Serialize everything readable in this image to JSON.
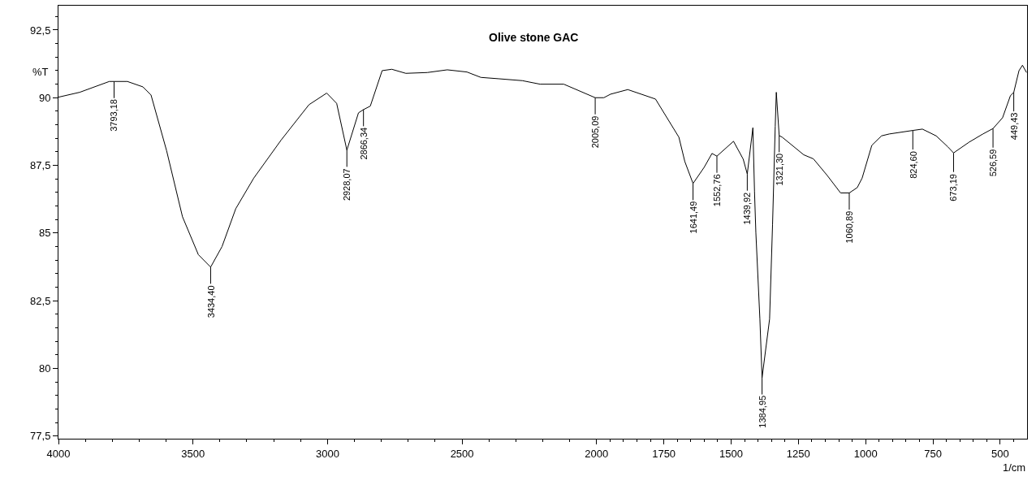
{
  "chart_data": {
    "type": "line",
    "title": "Olive stone GAC",
    "xlabel": "1/cm",
    "ylabel": "%T",
    "xlim": [
      4000,
      400
    ],
    "ylim": [
      77.4,
      93.4
    ],
    "xticks": [
      4000,
      {
        "value": 3900,
        "label": null
      },
      {
        "value": 3800,
        "label": null
      },
      {
        "value": 3700,
        "label": null
      },
      {
        "value": 3600,
        "label": null
      },
      3500,
      {
        "value": 3400,
        "label": null
      },
      {
        "value": 3300,
        "label": null
      },
      {
        "value": 3200,
        "label": null
      },
      {
        "value": 3100,
        "label": null
      },
      3000,
      {
        "value": 2900,
        "label": null
      },
      {
        "value": 2800,
        "label": null
      },
      {
        "value": 2700,
        "label": null
      },
      {
        "value": 2600,
        "label": null
      },
      2500,
      {
        "value": 2400,
        "label": null
      },
      {
        "value": 2300,
        "label": null
      },
      {
        "value": 2200,
        "label": null
      },
      {
        "value": 2100,
        "label": null
      },
      2000,
      {
        "value": 1950,
        "label": null
      },
      {
        "value": 1900,
        "label": null
      },
      {
        "value": 1850,
        "label": null
      },
      {
        "value": 1800,
        "label": null
      },
      1750,
      {
        "value": 1700,
        "label": null
      },
      {
        "value": 1650,
        "label": null
      },
      {
        "value": 1600,
        "label": null
      },
      {
        "value": 1550,
        "label": null
      },
      1500,
      {
        "value": 1450,
        "label": null
      },
      {
        "value": 1400,
        "label": null
      },
      {
        "value": 1350,
        "label": null
      },
      {
        "value": 1300,
        "label": null
      },
      1250,
      {
        "value": 1200,
        "label": null
      },
      {
        "value": 1150,
        "label": null
      },
      {
        "value": 1100,
        "label": null
      },
      {
        "value": 1050,
        "label": null
      },
      1000,
      {
        "value": 950,
        "label": null
      },
      {
        "value": 900,
        "label": null
      },
      {
        "value": 850,
        "label": null
      },
      {
        "value": 800,
        "label": null
      },
      750,
      {
        "value": 700,
        "label": null
      },
      {
        "value": 650,
        "label": null
      },
      {
        "value": 600,
        "label": null
      },
      {
        "value": 550,
        "label": null
      },
      500,
      {
        "value": 450,
        "label": null
      }
    ],
    "yticks": [
      {
        "value": 77.5,
        "label": "77,5"
      },
      {
        "value": 78,
        "label": null
      },
      {
        "value": 78.5,
        "label": null
      },
      {
        "value": 79,
        "label": null
      },
      {
        "value": 79.5,
        "label": null
      },
      80,
      {
        "value": 80.5,
        "label": null
      },
      {
        "value": 81,
        "label": null
      },
      {
        "value": 81.5,
        "label": null
      },
      {
        "value": 82,
        "label": null
      },
      {
        "value": 82.5,
        "label": "82,5"
      },
      {
        "value": 83,
        "label": null
      },
      {
        "value": 83.5,
        "label": null
      },
      {
        "value": 84,
        "label": null
      },
      {
        "value": 84.5,
        "label": null
      },
      85,
      {
        "value": 85.5,
        "label": null
      },
      {
        "value": 86,
        "label": null
      },
      {
        "value": 86.5,
        "label": null
      },
      {
        "value": 87,
        "label": null
      },
      {
        "value": 87.5,
        "label": "87,5"
      },
      {
        "value": 88,
        "label": null
      },
      {
        "value": 88.5,
        "label": null
      },
      {
        "value": 89,
        "label": null
      },
      {
        "value": 89.5,
        "label": null
      },
      90,
      {
        "value": 90.5,
        "label": null
      },
      {
        "value": 91,
        "label": null
      },
      {
        "value": 91.5,
        "label": null
      },
      {
        "value": 92,
        "label": null
      },
      {
        "value": 92.5,
        "label": "92,5"
      },
      {
        "value": 93,
        "label": null
      }
    ],
    "grid": false,
    "line_style": "solid",
    "series": [
      {
        "color": "#000000",
        "x": [
          4000,
          3921,
          3811,
          3793.18,
          3744,
          3686,
          3656,
          3598,
          3539,
          3480,
          3434.4,
          3392,
          3341,
          3274,
          3172,
          3069,
          3003,
          2966,
          2928.07,
          2885,
          2866.34,
          2841,
          2797,
          2761,
          2709,
          2629,
          2555,
          2482,
          2430,
          2364,
          2276,
          2210,
          2122,
          2005.09,
          1973,
          1948,
          1884,
          1781,
          1694,
          1672,
          1641.49,
          1600,
          1571,
          1552.76,
          1491,
          1455,
          1439.92,
          1419,
          1413,
          1408,
          1393,
          1384.95,
          1357,
          1346,
          1336,
          1332,
          1321.3,
          1310,
          1230,
          1194,
          1143,
          1093,
          1060.89,
          1031,
          1013,
          977,
          941,
          912,
          824.6,
          789,
          738,
          695,
          673.19,
          615,
          564,
          526.59,
          491,
          462,
          449.43,
          430,
          417,
          402
        ],
        "values": [
          90.02,
          90.2,
          90.6,
          90.6,
          90.6,
          90.4,
          90.1,
          88.04,
          85.6,
          84.2,
          83.74,
          84.5,
          85.9,
          87.03,
          88.44,
          89.74,
          90.17,
          89.79,
          88.06,
          89.44,
          89.56,
          89.69,
          91.0,
          91.05,
          90.9,
          90.93,
          91.03,
          90.95,
          90.75,
          90.7,
          90.63,
          90.5,
          90.5,
          90.0,
          90.0,
          90.13,
          90.3,
          89.95,
          88.54,
          87.64,
          86.83,
          87.43,
          87.94,
          87.84,
          88.39,
          87.73,
          87.18,
          88.89,
          86.53,
          85.02,
          81.82,
          79.65,
          81.82,
          85.3,
          88.94,
          90.2,
          88.6,
          88.54,
          87.89,
          87.74,
          87.13,
          86.48,
          86.48,
          86.68,
          87.03,
          88.24,
          88.59,
          88.66,
          88.79,
          88.84,
          88.59,
          88.19,
          87.96,
          88.36,
          88.66,
          88.86,
          89.26,
          90.07,
          90.2,
          91.0,
          91.2,
          90.93
        ]
      }
    ],
    "annotations": [
      {
        "text": "3793,18",
        "x": 3793.18,
        "y": 90.6
      },
      {
        "text": "3434,40",
        "x": 3434.4,
        "y": 83.74
      },
      {
        "text": "2928,07",
        "x": 2928.07,
        "y": 88.06
      },
      {
        "text": "2866,34",
        "x": 2866.34,
        "y": 89.56
      },
      {
        "text": "2005,09",
        "x": 2005.09,
        "y": 90.0
      },
      {
        "text": "1641,49",
        "x": 1641.49,
        "y": 86.83
      },
      {
        "text": "1552,76",
        "x": 1552.76,
        "y": 87.84
      },
      {
        "text": "1439,92",
        "x": 1439.92,
        "y": 87.18
      },
      {
        "text": "1384,95",
        "x": 1384.95,
        "y": 79.65
      },
      {
        "text": "1321,30",
        "x": 1321.3,
        "y": 88.6
      },
      {
        "text": "1060,89",
        "x": 1060.89,
        "y": 86.48
      },
      {
        "text": "824,60",
        "x": 824.6,
        "y": 88.79
      },
      {
        "text": "673,19",
        "x": 673.19,
        "y": 87.96
      },
      {
        "text": "526,59",
        "x": 526.59,
        "y": 88.86
      },
      {
        "text": "449,43",
        "x": 449.43,
        "y": 90.2
      }
    ]
  }
}
